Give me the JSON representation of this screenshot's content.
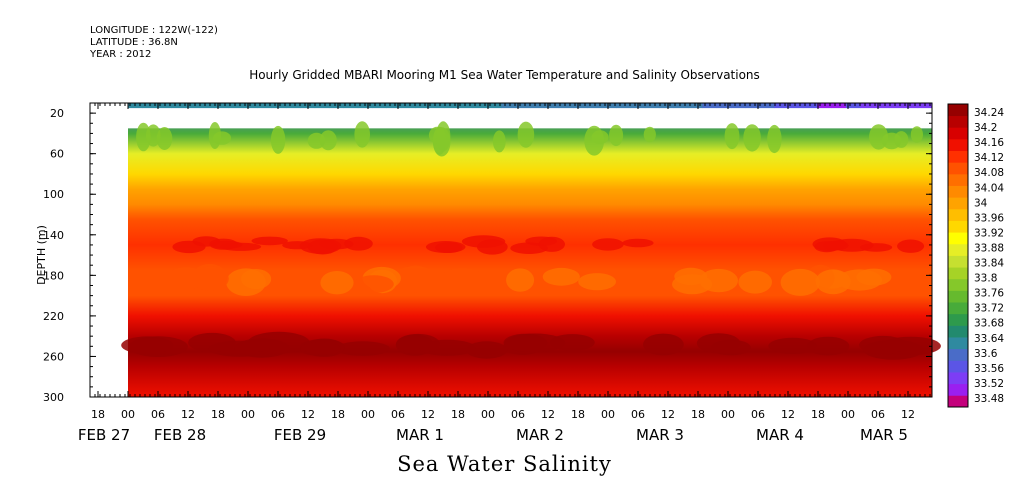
{
  "header": {
    "longitude": "LONGITUDE : 122W(-122)",
    "latitude": "LATITUDE : 36.8N",
    "year": "YEAR : 2012"
  },
  "chart_data": {
    "type": "heatmap",
    "title": "Hourly Gridded MBARI Mooring M1 Sea Water Temperature and Salinity Observations",
    "xlabel": "Sea Water Salinity",
    "ylabel": "DEPTH (m)",
    "y_axis": {
      "ylim": [
        300,
        10
      ],
      "ticks": [
        20,
        60,
        100,
        140,
        180,
        220,
        260,
        300
      ],
      "inverted": true
    },
    "x_axis": {
      "hour_ticks": [
        "18",
        "00",
        "06",
        "12",
        "18",
        "00",
        "06",
        "12",
        "18",
        "00",
        "06",
        "12",
        "18",
        "00",
        "06",
        "12",
        "18",
        "00",
        "06",
        "12",
        "18",
        "00",
        "06",
        "12",
        "18",
        "00",
        "06",
        "12"
      ],
      "date_labels": [
        "FEB 27",
        "FEB 28",
        "FEB 29",
        "MAR  1",
        "MAR  2",
        "MAR  3",
        "MAR  4",
        "MAR  5"
      ],
      "start": "FEB 28 00",
      "end": "MAR 5 18"
    },
    "colorbar": {
      "labels": [
        "34.24",
        "34.2",
        "34.16",
        "34.12",
        "34.08",
        "34.04",
        "34",
        "33.96",
        "33.92",
        "33.88",
        "33.84",
        "33.8",
        "33.76",
        "33.72",
        "33.68",
        "33.64",
        "33.6",
        "33.56",
        "33.52",
        "33.48"
      ],
      "min": 33.48,
      "max": 34.26,
      "colors": [
        "#c4007c",
        "#9a1ff0",
        "#7d3df5",
        "#5b55e6",
        "#4a6cc8",
        "#2f8aa0",
        "#228a6e",
        "#2e9a4c",
        "#48ab3a",
        "#66ba2e",
        "#85c82a",
        "#a6d326",
        "#c6e030",
        "#e6ee26",
        "#ffff00",
        "#ffd800",
        "#ffbe00",
        "#ffa300",
        "#ff8a00",
        "#ff6f00",
        "#ff5200",
        "#ff3000",
        "#f01000",
        "#d80000",
        "#b80000",
        "#960000"
      ]
    },
    "depth_profile": [
      {
        "depth": 10,
        "value": 33.62
      },
      {
        "depth": 15,
        "value": 33.62
      },
      {
        "depth": 40,
        "value": 33.72
      },
      {
        "depth": 60,
        "value": 33.87
      },
      {
        "depth": 80,
        "value": 33.95
      },
      {
        "depth": 95,
        "value": 33.99
      },
      {
        "depth": 110,
        "value": 34.03
      },
      {
        "depth": 125,
        "value": 34.08
      },
      {
        "depth": 150,
        "value": 34.13
      },
      {
        "depth": 175,
        "value": 34.09
      },
      {
        "depth": 200,
        "value": 34.1
      },
      {
        "depth": 220,
        "value": 34.15
      },
      {
        "depth": 240,
        "value": 34.21
      },
      {
        "depth": 255,
        "value": 34.25
      },
      {
        "depth": 270,
        "value": 34.22
      },
      {
        "depth": 300,
        "value": 34.16
      }
    ],
    "missing_depth_range": [
      15,
      35
    ]
  }
}
